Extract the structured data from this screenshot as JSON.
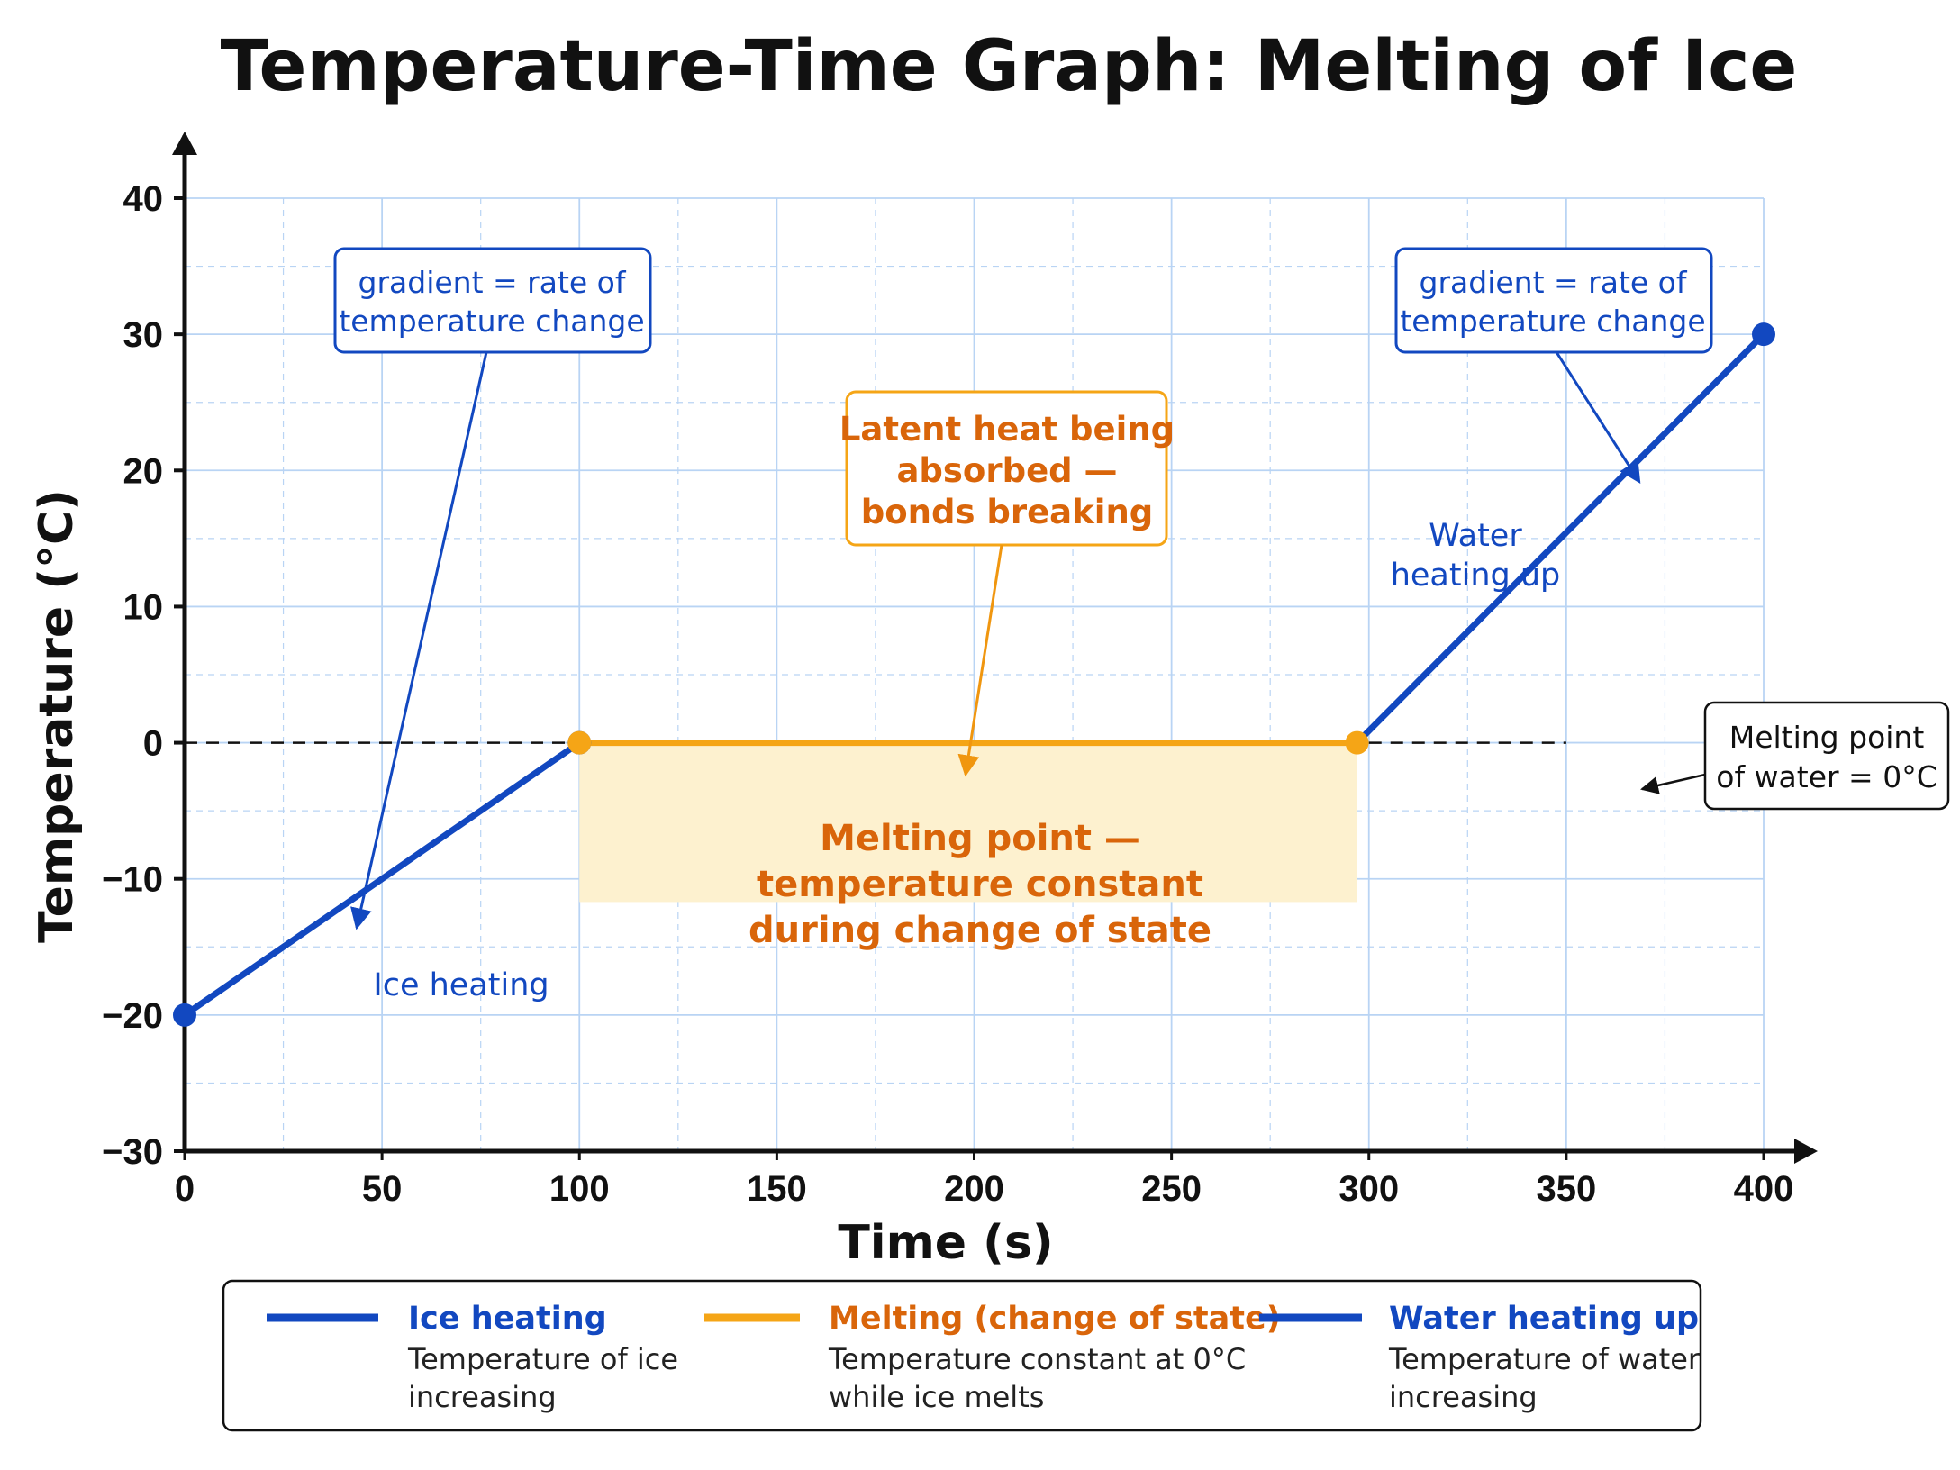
{
  "chart_data": {
    "type": "line",
    "title": "Temperature-Time Graph: Melting of Ice",
    "xlabel": "Time (s)",
    "ylabel": "Temperature (°C)",
    "xlim": [
      0,
      400
    ],
    "ylim": [
      -30,
      40
    ],
    "x_ticks": [
      0,
      50,
      100,
      150,
      200,
      250,
      300,
      350,
      400
    ],
    "y_ticks": [
      40,
      30,
      20,
      10,
      0,
      -10,
      -20,
      -30
    ],
    "x_tick_labels": [
      "0",
      "50",
      "100",
      "150",
      "200",
      "250",
      "300",
      "350",
      "400"
    ],
    "y_tick_labels": [
      "40",
      "30",
      "20",
      "10",
      "0",
      "−10",
      "−20",
      "−30"
    ],
    "grid": true,
    "legend_position": "bottom",
    "series": [
      {
        "name": "Ice heating",
        "description_lines": [
          "Temperature of ice",
          "increasing"
        ],
        "color": "#1248c0",
        "x": [
          0,
          100
        ],
        "y": [
          -20,
          0
        ],
        "markers": [
          0,
          1
        ]
      },
      {
        "name": "Melting (change of state)",
        "description_lines": [
          "Temperature constant at 0°C",
          "while ice melts"
        ],
        "color": "#f5a516",
        "x": [
          100,
          297
        ],
        "y": [
          0,
          0
        ],
        "markers": [
          0,
          1
        ]
      },
      {
        "name": "Water heating up",
        "description_lines": [
          "Temperature of water",
          "increasing"
        ],
        "color": "#1248c0",
        "x": [
          297,
          400
        ],
        "y": [
          0,
          30
        ],
        "markers": [
          1
        ]
      }
    ],
    "reference_line": {
      "y": 0,
      "x_range": [
        300,
        350
      ],
      "style": "dashed",
      "color": "#111111"
    },
    "shaded_region": {
      "x": [
        100,
        297
      ],
      "y": [
        -11.7,
        0
      ],
      "color": "#fdf1cf"
    },
    "annotations": {
      "gradient_left": {
        "lines": [
          "gradient = rate of",
          "temperature change"
        ]
      },
      "gradient_right": {
        "lines": [
          "gradient = rate of",
          "temperature change"
        ]
      },
      "latent_heat": {
        "lines": [
          "Latent heat being",
          "absorbed —",
          "bonds breaking"
        ]
      },
      "melting_point_text": {
        "lines": [
          "Melting point —",
          "temperature constant",
          "during change of state"
        ]
      },
      "melting_point_box": {
        "lines": [
          "Melting point",
          "of water = 0°C"
        ]
      },
      "ice_heating_label": "Ice heating",
      "water_heating_label": {
        "lines": [
          "Water",
          "heating up"
        ]
      }
    }
  },
  "colors": {
    "blue": "#1248c0",
    "orange_line": "#f5a516",
    "orange_text": "#d9650a",
    "grid": "#b9d4f4",
    "shade": "#fdf1cf"
  }
}
